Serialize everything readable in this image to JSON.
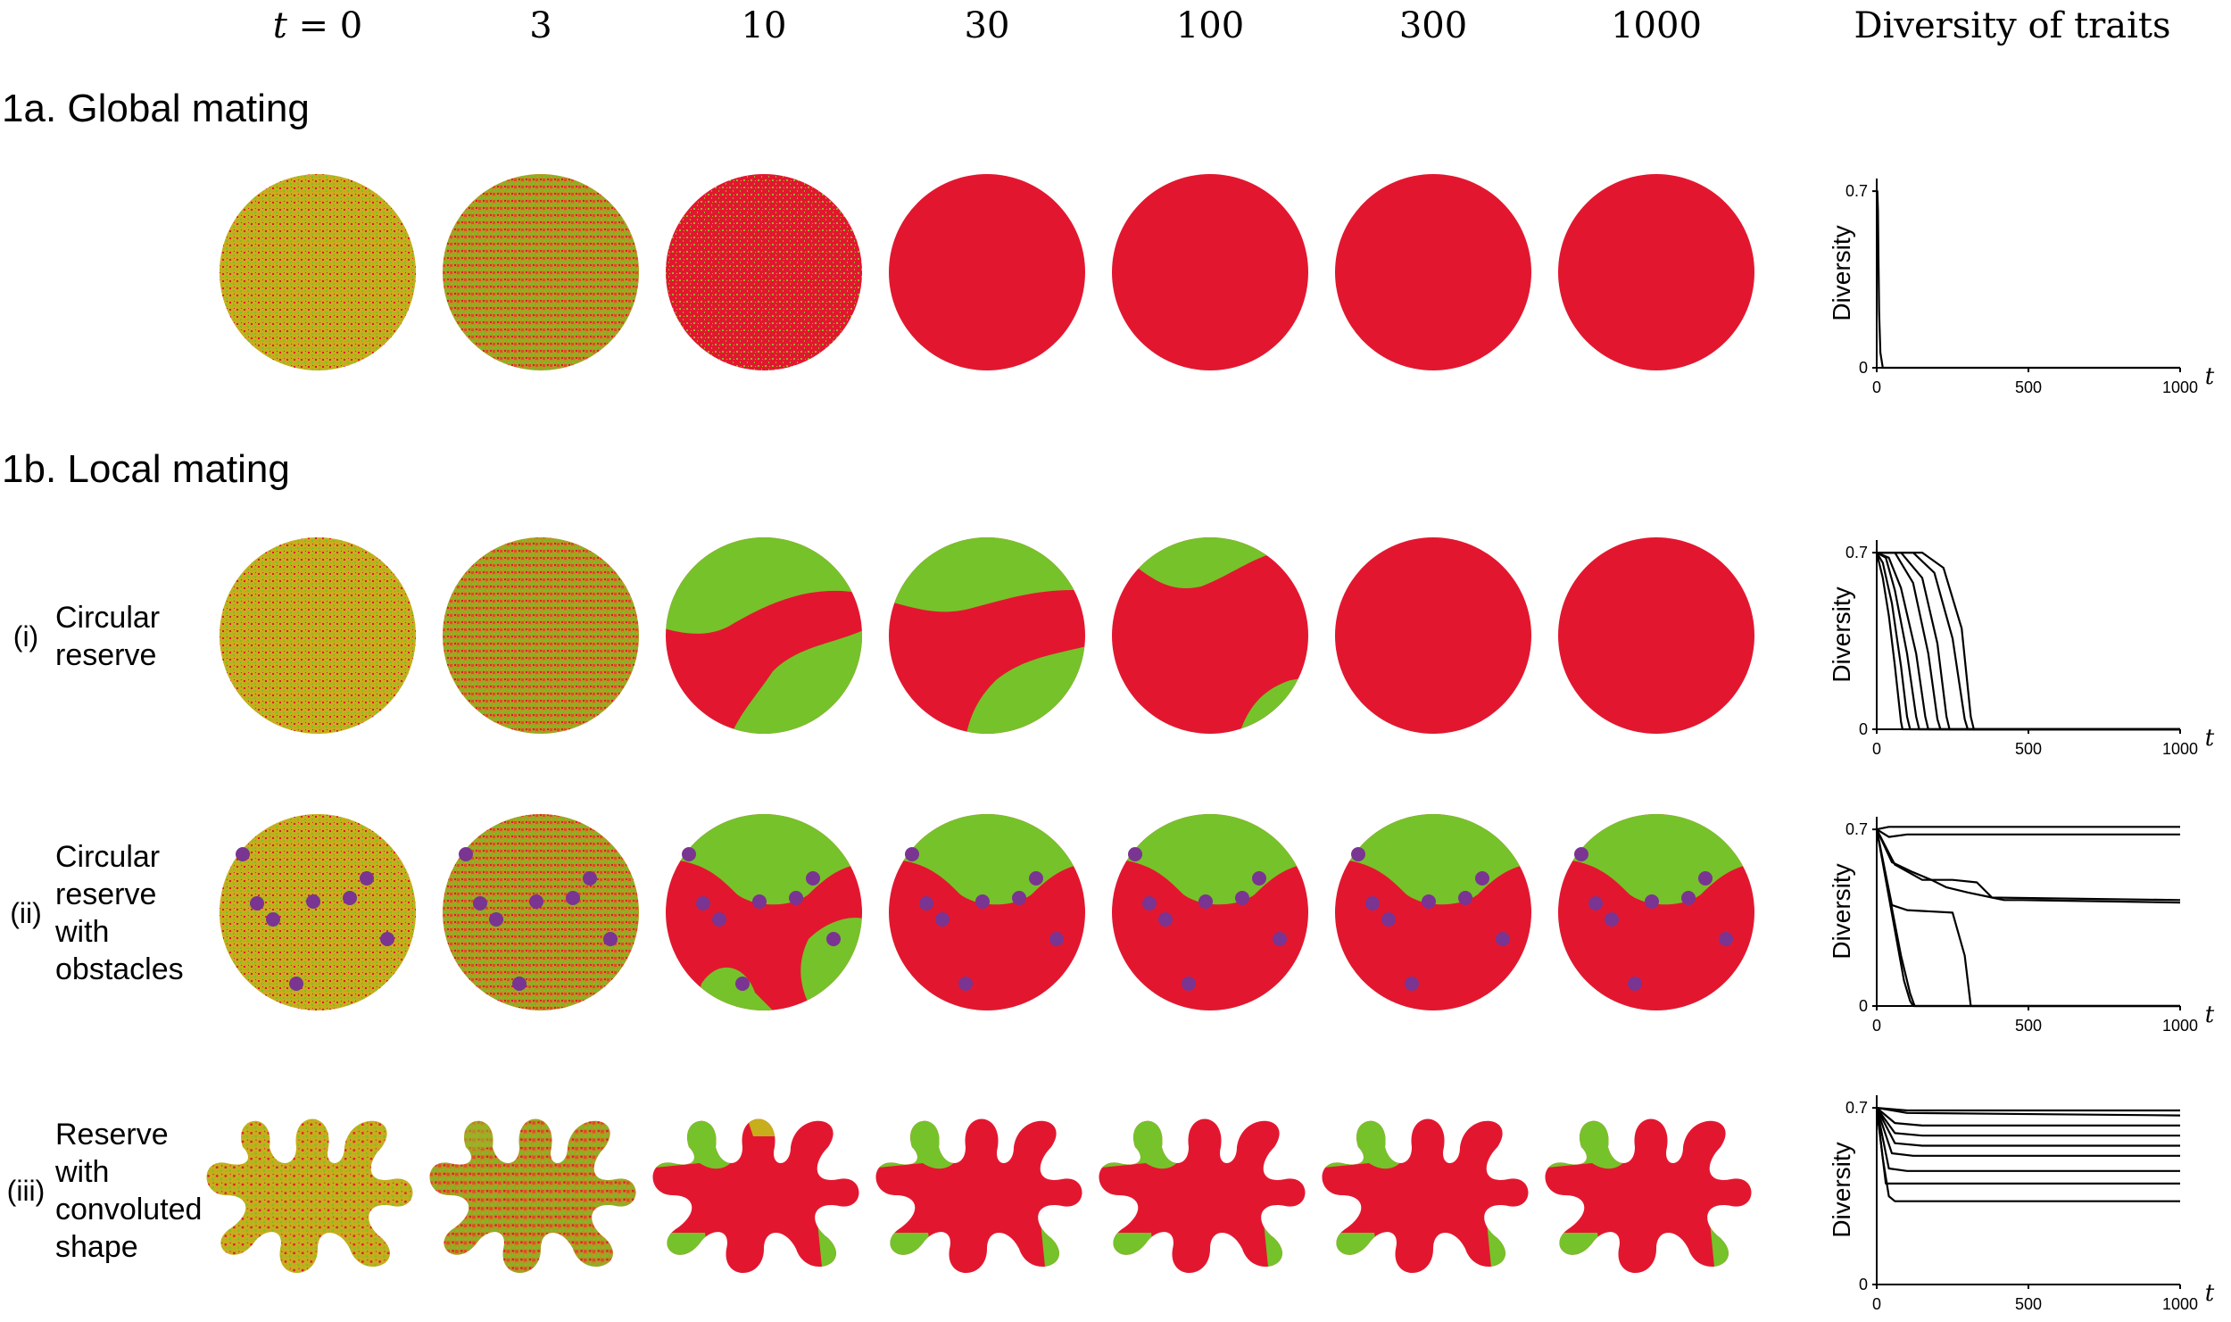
{
  "header": {
    "time_labels": [
      "t = 0",
      "3",
      "10",
      "30",
      "100",
      "300",
      "1000"
    ],
    "diversity_title": "Diversity of traits"
  },
  "sections": [
    {
      "label": "1a. Global mating"
    },
    {
      "label": "1b. Local mating"
    }
  ],
  "rows": [
    {
      "key": "global",
      "roman": "",
      "label_lines": []
    },
    {
      "key": "circular",
      "roman": "(i)",
      "label_lines": [
        "Circular",
        "reserve"
      ]
    },
    {
      "key": "obstacles",
      "roman": "(ii)",
      "label_lines": [
        "Circular",
        "reserve",
        "with",
        "obstacles"
      ]
    },
    {
      "key": "convoluted",
      "roman": "(iii)",
      "label_lines": [
        "Reserve",
        "with",
        "convoluted",
        "shape"
      ]
    }
  ],
  "colors": {
    "red": "#E2172F",
    "green": "#76C22A",
    "mixed": "#C6AE1C",
    "obstacle": "#7A3492",
    "axis": "#000000"
  },
  "chart_data": [
    {
      "type": "line",
      "row": "global",
      "ylabel": "Diversity",
      "xlabel": "t",
      "yticks": [
        "0.7",
        "0"
      ],
      "xticks": [
        "0",
        "500",
        "1000"
      ],
      "xlim": [
        0,
        1000
      ],
      "ylim": [
        0,
        0.75
      ],
      "series": [
        {
          "x": [
            0,
            2,
            4,
            6,
            8,
            12,
            20,
            1000
          ],
          "y": [
            0.7,
            0.7,
            0.62,
            0.42,
            0.22,
            0.06,
            0,
            0
          ]
        }
      ]
    },
    {
      "type": "line",
      "row": "circular",
      "ylabel": "Diversity",
      "xlabel": "t",
      "yticks": [
        "0.7",
        "0"
      ],
      "xticks": [
        "0",
        "500",
        "1000"
      ],
      "xlim": [
        0,
        1000
      ],
      "ylim": [
        0,
        0.75
      ],
      "series": [
        {
          "x": [
            0,
            20,
            40,
            60,
            80,
            85,
            1000
          ],
          "y": [
            0.7,
            0.6,
            0.45,
            0.25,
            0.03,
            0,
            0
          ]
        },
        {
          "x": [
            0,
            20,
            50,
            80,
            100,
            110,
            1000
          ],
          "y": [
            0.7,
            0.66,
            0.5,
            0.25,
            0.05,
            0,
            0
          ]
        },
        {
          "x": [
            0,
            30,
            60,
            100,
            130,
            140,
            1000
          ],
          "y": [
            0.7,
            0.68,
            0.55,
            0.3,
            0.05,
            0,
            0
          ]
        },
        {
          "x": [
            0,
            40,
            80,
            130,
            160,
            170,
            1000
          ],
          "y": [
            0.7,
            0.68,
            0.56,
            0.3,
            0.05,
            0,
            0
          ]
        },
        {
          "x": [
            0,
            60,
            120,
            170,
            200,
            210,
            1000
          ],
          "y": [
            0.7,
            0.7,
            0.58,
            0.3,
            0.04,
            0,
            0
          ]
        },
        {
          "x": [
            0,
            80,
            150,
            200,
            230,
            240,
            1000
          ],
          "y": [
            0.7,
            0.7,
            0.6,
            0.34,
            0.05,
            0,
            0
          ]
        },
        {
          "x": [
            0,
            120,
            190,
            250,
            290,
            300,
            1000
          ],
          "y": [
            0.7,
            0.7,
            0.62,
            0.36,
            0.04,
            0,
            0
          ]
        },
        {
          "x": [
            0,
            150,
            220,
            280,
            310,
            320,
            1000
          ],
          "y": [
            0.7,
            0.7,
            0.64,
            0.4,
            0.05,
            0,
            0
          ]
        }
      ]
    },
    {
      "type": "line",
      "row": "obstacles",
      "ylabel": "Diversity",
      "xlabel": "t",
      "yticks": [
        "0.7",
        "0"
      ],
      "xticks": [
        "0",
        "500",
        "1000"
      ],
      "xlim": [
        0,
        1000
      ],
      "ylim": [
        0,
        0.75
      ],
      "series": [
        {
          "x": [
            0,
            40,
            100,
            1000
          ],
          "y": [
            0.7,
            0.71,
            0.71,
            0.71
          ]
        },
        {
          "x": [
            0,
            40,
            100,
            1000
          ],
          "y": [
            0.7,
            0.67,
            0.68,
            0.68
          ]
        },
        {
          "x": [
            0,
            60,
            150,
            250,
            330,
            380,
            420,
            480,
            1000
          ],
          "y": [
            0.7,
            0.56,
            0.5,
            0.5,
            0.49,
            0.43,
            0.42,
            0.42,
            0.41
          ]
        },
        {
          "x": [
            0,
            50,
            120,
            180,
            230,
            300,
            380,
            1000
          ],
          "y": [
            0.7,
            0.57,
            0.53,
            0.5,
            0.47,
            0.45,
            0.43,
            0.42
          ]
        },
        {
          "x": [
            0,
            30,
            60,
            90,
            110,
            120,
            1000
          ],
          "y": [
            0.7,
            0.5,
            0.3,
            0.1,
            0.02,
            0,
            0
          ]
        },
        {
          "x": [
            0,
            40,
            80,
            110,
            125,
            1000
          ],
          "y": [
            0.7,
            0.45,
            0.2,
            0.05,
            0,
            0
          ]
        },
        {
          "x": [
            0,
            50,
            100,
            250,
            290,
            310,
            1000
          ],
          "y": [
            0.7,
            0.4,
            0.38,
            0.37,
            0.2,
            0,
            0
          ]
        }
      ]
    },
    {
      "type": "line",
      "row": "convoluted",
      "ylabel": "Diversity",
      "xlabel": "t",
      "yticks": [
        "0.7",
        "0"
      ],
      "xticks": [
        "0",
        "500",
        "1000"
      ],
      "xlim": [
        0,
        1000
      ],
      "ylim": [
        0,
        0.75
      ],
      "series": [
        {
          "x": [
            0,
            100,
            1000
          ],
          "y": [
            0.7,
            0.69,
            0.69
          ]
        },
        {
          "x": [
            0,
            100,
            1000
          ],
          "y": [
            0.7,
            0.68,
            0.67
          ]
        },
        {
          "x": [
            0,
            60,
            150,
            1000
          ],
          "y": [
            0.7,
            0.64,
            0.63,
            0.63
          ]
        },
        {
          "x": [
            0,
            60,
            150,
            1000
          ],
          "y": [
            0.7,
            0.6,
            0.59,
            0.59
          ]
        },
        {
          "x": [
            0,
            60,
            150,
            1000
          ],
          "y": [
            0.7,
            0.56,
            0.55,
            0.55
          ]
        },
        {
          "x": [
            0,
            50,
            120,
            1000
          ],
          "y": [
            0.7,
            0.52,
            0.51,
            0.51
          ]
        },
        {
          "x": [
            0,
            40,
            100,
            1000
          ],
          "y": [
            0.7,
            0.46,
            0.45,
            0.45
          ]
        },
        {
          "x": [
            0,
            30,
            80,
            1000
          ],
          "y": [
            0.7,
            0.4,
            0.4,
            0.4
          ]
        },
        {
          "x": [
            0,
            20,
            40,
            60,
            1000
          ],
          "y": [
            0.7,
            0.5,
            0.35,
            0.33,
            0.33
          ]
        }
      ]
    }
  ]
}
